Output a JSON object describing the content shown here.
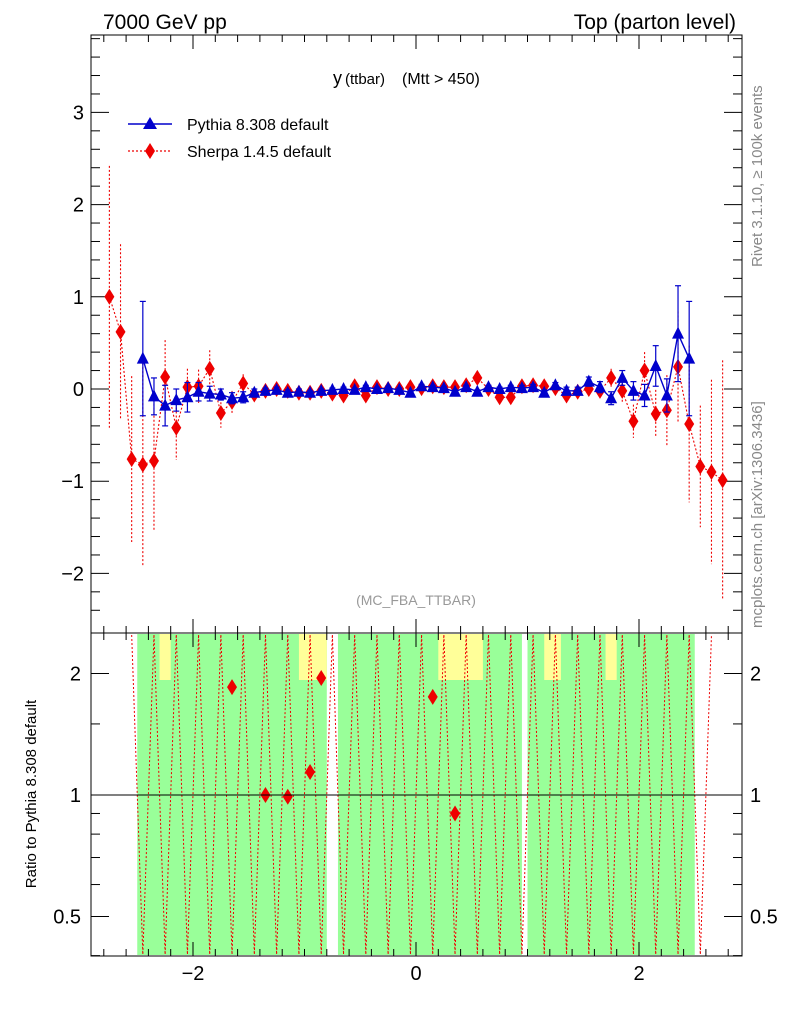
{
  "header": {
    "left": "7000 GeV pp",
    "right": "Top (parton level)"
  },
  "side": {
    "rivet": "Rivet 3.1.10, ≥ 100k events",
    "mcplots": "mcplots.cern.ch [arXiv:1306.3436]"
  },
  "plot": {
    "title_main": "y",
    "title_sub": " (ttbar)",
    "title_cut": " (Mtt > 450)",
    "analysis": "(MC_FBA_TTBAR)"
  },
  "ratio_ylabel": "Ratio to Pythia 8.308 default",
  "colors": {
    "pythia": "#0000cc",
    "sherpa": "#ee0000",
    "band_green": "#99ff99",
    "band_yellow": "#ffff99"
  },
  "chart_data": [
    {
      "type": "scatter",
      "xlim": [
        -2.9,
        2.9
      ],
      "ylim": [
        -2.6,
        3.9
      ],
      "xticks": [
        -2,
        0,
        2
      ],
      "yticks": [
        -2,
        -1,
        0,
        1,
        2,
        3
      ],
      "series": [
        {
          "name": "Pythia 8.308 default",
          "marker": "triangle",
          "x": [
            -2.45,
            -2.35,
            -2.25,
            -2.15,
            -2.05,
            -1.95,
            -1.85,
            -1.75,
            -1.65,
            -1.55,
            -1.45,
            -1.35,
            -1.25,
            -1.15,
            -1.05,
            -0.95,
            -0.85,
            -0.75,
            -0.65,
            -0.55,
            -0.45,
            -0.35,
            -0.25,
            -0.15,
            -0.05,
            0.05,
            0.15,
            0.25,
            0.35,
            0.45,
            0.55,
            0.65,
            0.75,
            0.85,
            0.95,
            1.05,
            1.15,
            1.25,
            1.35,
            1.45,
            1.55,
            1.65,
            1.75,
            1.85,
            1.95,
            2.05,
            2.15,
            2.25,
            2.35,
            2.45
          ],
          "y": [
            0.33,
            -0.08,
            -0.18,
            -0.12,
            -0.09,
            -0.03,
            -0.05,
            -0.06,
            -0.1,
            -0.09,
            -0.04,
            -0.02,
            -0.01,
            -0.04,
            -0.03,
            -0.04,
            -0.02,
            -0.01,
            0.0,
            -0.01,
            0.02,
            0.0,
            0.01,
            -0.01,
            -0.04,
            0.03,
            0.02,
            0.01,
            -0.03,
            0.02,
            -0.03,
            0.02,
            0.0,
            0.02,
            0.01,
            0.02,
            -0.04,
            0.04,
            -0.02,
            -0.02,
            0.08,
            0.02,
            -0.1,
            0.12,
            -0.02,
            -0.07,
            0.25,
            -0.07,
            0.6,
            0.33
          ],
          "err": [
            0.62,
            0.2,
            0.22,
            0.12,
            0.16,
            0.1,
            0.08,
            0.06,
            0.06,
            0.06,
            0.04,
            0.03,
            0.03,
            0.03,
            0.03,
            0.02,
            0.02,
            0.02,
            0.02,
            0.02,
            0.02,
            0.02,
            0.02,
            0.02,
            0.02,
            0.02,
            0.02,
            0.02,
            0.02,
            0.02,
            0.02,
            0.02,
            0.02,
            0.02,
            0.03,
            0.03,
            0.03,
            0.03,
            0.04,
            0.04,
            0.05,
            0.06,
            0.07,
            0.08,
            0.1,
            0.12,
            0.22,
            0.18,
            0.52,
            0.62
          ]
        },
        {
          "name": "Sherpa 1.4.5 default",
          "marker": "diamond",
          "x": [
            -2.75,
            -2.65,
            -2.55,
            -2.45,
            -2.35,
            -2.25,
            -2.15,
            -2.05,
            -1.95,
            -1.85,
            -1.75,
            -1.65,
            -1.55,
            -1.45,
            -1.35,
            -1.25,
            -1.15,
            -1.05,
            -0.95,
            -0.85,
            -0.75,
            -0.65,
            -0.55,
            -0.45,
            -0.35,
            -0.25,
            -0.15,
            -0.05,
            0.05,
            0.15,
            0.25,
            0.35,
            0.45,
            0.55,
            0.65,
            0.75,
            0.85,
            0.95,
            1.05,
            1.15,
            1.25,
            1.35,
            1.45,
            1.55,
            1.65,
            1.75,
            1.85,
            1.95,
            2.05,
            2.15,
            2.25,
            2.35,
            2.45,
            2.55,
            2.65,
            2.75
          ],
          "y": [
            1.0,
            0.62,
            -0.76,
            -0.82,
            -0.78,
            0.13,
            -0.42,
            0.02,
            0.03,
            0.22,
            -0.26,
            -0.14,
            0.06,
            -0.06,
            -0.02,
            0.0,
            -0.02,
            -0.04,
            -0.04,
            -0.02,
            -0.05,
            -0.07,
            0.03,
            -0.07,
            0.02,
            0.0,
            0.0,
            0.02,
            0.01,
            0.03,
            0.02,
            0.02,
            0.04,
            0.12,
            0.0,
            -0.09,
            -0.09,
            0.03,
            0.04,
            0.03,
            0.01,
            -0.07,
            -0.03,
            0.0,
            -0.02,
            0.12,
            -0.02,
            -0.35,
            0.2,
            -0.27,
            -0.23,
            0.24,
            -0.38,
            -0.84,
            -0.9,
            -0.99
          ],
          "err": [
            1.42,
            0.95,
            0.9,
            1.1,
            0.75,
            0.4,
            0.35,
            0.2,
            0.18,
            0.2,
            0.16,
            0.12,
            0.1,
            0.08,
            0.06,
            0.05,
            0.04,
            0.04,
            0.04,
            0.03,
            0.03,
            0.03,
            0.03,
            0.03,
            0.03,
            0.03,
            0.03,
            0.03,
            0.03,
            0.03,
            0.03,
            0.03,
            0.03,
            0.03,
            0.03,
            0.03,
            0.03,
            0.03,
            0.04,
            0.04,
            0.04,
            0.05,
            0.06,
            0.07,
            0.08,
            0.1,
            0.12,
            0.18,
            0.2,
            0.26,
            0.38,
            0.6,
            0.85,
            0.66,
            1.0,
            1.3
          ]
        }
      ]
    },
    {
      "type": "scatter",
      "ylabel": "Ratio to Pythia 8.308 default",
      "xlim": [
        -2.9,
        2.9
      ],
      "ylim": [
        0.34,
        2.45
      ],
      "log_y": true,
      "xticks": [
        -2,
        0,
        2
      ],
      "yticks": [
        0.5,
        1,
        2
      ],
      "reference_line": 1,
      "bands": [
        {
          "name": "green",
          "x_ranges": [
            [
              -2.5,
              -0.8
            ],
            [
              -0.7,
              0.95
            ],
            [
              1.0,
              2.5
            ]
          ]
        },
        {
          "name": "yellow",
          "x_ranges": [
            [
              -2.3,
              -2.2
            ],
            [
              -1.05,
              -0.8
            ],
            [
              0.2,
              0.6
            ],
            [
              1.15,
              1.3
            ],
            [
              1.7,
              1.8
            ]
          ]
        }
      ],
      "series": [
        {
          "name": "Sherpa 1.4.5 default",
          "marker": "diamond",
          "x": [
            -1.65,
            -1.35,
            -1.15,
            -0.95,
            -0.85,
            0.15,
            0.35
          ],
          "y": [
            1.85,
            1.0,
            0.99,
            1.14,
            1.95,
            1.75,
            0.9
          ]
        }
      ]
    }
  ]
}
